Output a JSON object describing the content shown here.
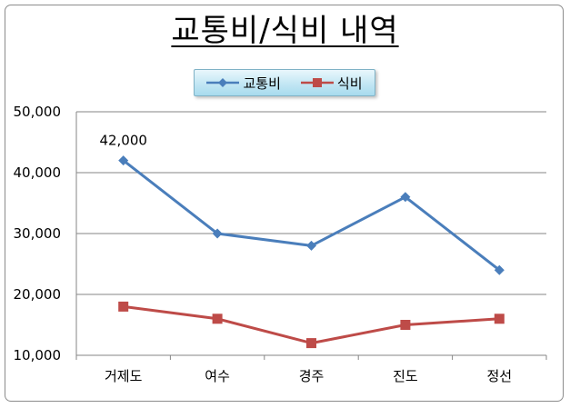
{
  "chart_data": {
    "type": "line",
    "title": "교통비/식비 내역",
    "categories": [
      "거제도",
      "여수",
      "경주",
      "진도",
      "정선"
    ],
    "series": [
      {
        "name": "교통비",
        "values": [
          42000,
          30000,
          28000,
          36000,
          24000
        ],
        "color": "#4a7ebb",
        "marker": "diamond"
      },
      {
        "name": "식비",
        "values": [
          18000,
          16000,
          12000,
          15000,
          16000
        ],
        "color": "#be4b48",
        "marker": "square"
      }
    ],
    "ylim": [
      10000,
      50000
    ],
    "yticks": [
      "10,000",
      "20,000",
      "30,000",
      "40,000",
      "50,000"
    ],
    "data_labels": [
      {
        "series": 0,
        "index": 0,
        "text": "42,000"
      }
    ],
    "grid": true,
    "legend_position": "top"
  }
}
